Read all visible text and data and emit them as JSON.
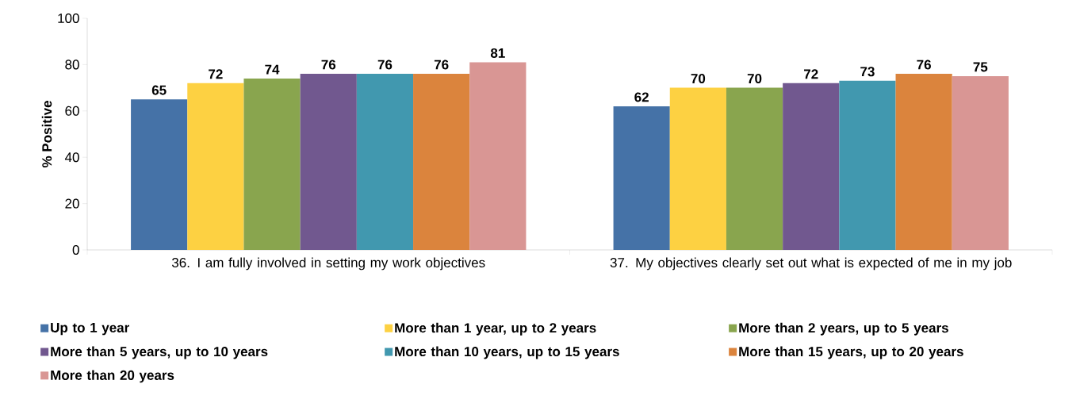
{
  "chart_data": {
    "type": "bar",
    "ylabel": "% Positive",
    "categories": [
      "36. I am fully involved in setting my work objectives",
      "37. My objectives clearly set out what is expected of me in my job"
    ],
    "series": [
      {
        "name": "Up to 1 year",
        "color": "#4572a7",
        "values": [
          65,
          62
        ]
      },
      {
        "name": "More than 1 year, up to 2 years",
        "color": "#fdd142",
        "values": [
          72,
          70
        ]
      },
      {
        "name": "More than 2 years, up to 5 years",
        "color": "#89a54e",
        "values": [
          74,
          70
        ]
      },
      {
        "name": "More than 5 years, up to 10 years",
        "color": "#71588f",
        "values": [
          76,
          72
        ]
      },
      {
        "name": "More than 10 years, up to 15 years",
        "color": "#4198af",
        "values": [
          76,
          73
        ]
      },
      {
        "name": "More than 15 years, up to 20 years",
        "color": "#db843d",
        "values": [
          76,
          76
        ]
      },
      {
        "name": "More than 20 years",
        "color": "#d99694",
        "values": [
          81,
          75
        ]
      }
    ],
    "ylim": [
      0,
      100
    ],
    "yticks": [
      0,
      20,
      40,
      60,
      80,
      100
    ],
    "data_labels": true,
    "grid": false,
    "legend": "bottom"
  }
}
